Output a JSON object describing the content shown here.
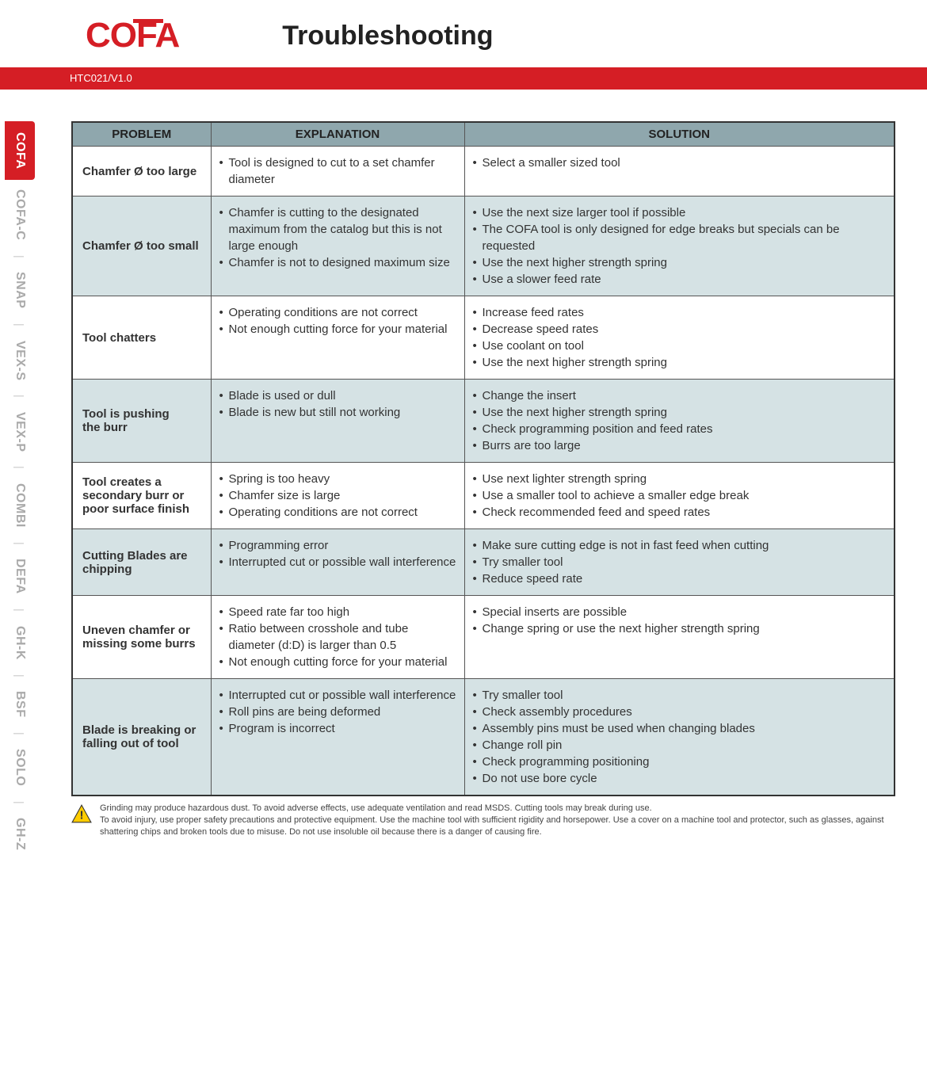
{
  "header": {
    "logo": "COFA",
    "title": "Troubleshooting",
    "doc_version": "HTC021/V1.0"
  },
  "colors": {
    "brand_red": "#d51e25",
    "table_header_bg": "#8fa7ad",
    "row_alt_bg": "#d5e2e4",
    "border": "#333333",
    "inactive_tab": "#aaaaaa"
  },
  "side_tabs": [
    {
      "label": "COFA",
      "active": true
    },
    {
      "label": "COFA-C",
      "active": false
    },
    {
      "label": "SNAP",
      "active": false
    },
    {
      "label": "VEX-S",
      "active": false
    },
    {
      "label": "VEX-P",
      "active": false
    },
    {
      "label": "COMBI",
      "active": false
    },
    {
      "label": "DEFA",
      "active": false
    },
    {
      "label": "GH-K",
      "active": false
    },
    {
      "label": "BSF",
      "active": false
    },
    {
      "label": "SOLO",
      "active": false
    },
    {
      "label": "GH-Z",
      "active": false
    }
  ],
  "table": {
    "columns": [
      "PROBLEM",
      "EXPLANATION",
      "SOLUTION"
    ],
    "rows": [
      {
        "problem": "Chamfer Ø too large",
        "explanation": [
          "Tool is designed to cut to a set chamfer diameter"
        ],
        "solution": [
          "Select a smaller sized tool"
        ],
        "alt": false
      },
      {
        "problem": "Chamfer Ø too small",
        "explanation": [
          "Chamfer is cutting to the designated maximum from the catalog but this is not large enough",
          "Chamfer is not to designed maximum size"
        ],
        "solution": [
          "Use the next size larger tool if possible",
          "The COFA tool is only designed for edge breaks but specials can be requested",
          "Use the next higher strength spring",
          "Use a slower feed rate"
        ],
        "alt": true
      },
      {
        "problem": "Tool chatters",
        "explanation": [
          "Operating conditions are not correct",
          "Not enough cutting force for your material"
        ],
        "solution": [
          "Increase feed rates",
          "Decrease speed rates",
          "Use coolant on tool",
          "Use the next higher strength spring"
        ],
        "alt": false
      },
      {
        "problem": "Tool is pushing\nthe burr",
        "explanation": [
          "Blade is used or dull",
          "Blade is new but still not working"
        ],
        "solution": [
          "Change the insert",
          "Use the next higher strength spring",
          "Check programming position and feed rates",
          "Burrs are too large"
        ],
        "alt": true
      },
      {
        "problem": "Tool creates a\nsecondary burr or\npoor surface finish",
        "explanation": [
          "Spring is too heavy",
          "Chamfer size is large",
          "Operating conditions are not correct"
        ],
        "solution": [
          "Use next lighter strength spring",
          "Use a smaller tool to achieve a smaller edge break",
          "Check recommended feed and speed rates"
        ],
        "alt": false
      },
      {
        "problem": "Cutting Blades are\nchipping",
        "explanation": [
          "Programming error",
          "Interrupted cut or possible wall interference"
        ],
        "solution": [
          "Make sure cutting edge is not in fast feed when cutting",
          "Try smaller tool",
          "Reduce speed rate"
        ],
        "alt": true
      },
      {
        "problem": "Uneven chamfer or\nmissing some burrs",
        "explanation": [
          "Speed rate far too high",
          "Ratio between crosshole and tube diameter (d:D) is larger than 0.5",
          "Not enough cutting force for your material"
        ],
        "solution": [
          "Special inserts are possible",
          "Change spring or use the next higher strength spring"
        ],
        "alt": false
      },
      {
        "problem": "Blade is breaking or\nfalling out of tool",
        "explanation": [
          "Interrupted cut or possible wall interference",
          "Roll pins are being deformed",
          "Program is incorrect"
        ],
        "solution": [
          "Try smaller tool",
          "Check assembly procedures",
          "Assembly pins must be used when changing blades",
          "Change roll pin",
          "Check programming positioning",
          "Do not use bore cycle"
        ],
        "alt": true
      }
    ]
  },
  "warning": {
    "line1": "Grinding may produce hazardous dust. To avoid adverse effects, use adequate ventilation and read MSDS. Cutting tools may break during use.",
    "line2": "To avoid injury, use proper safety precautions and protective equipment. Use the machine tool with sufficient rigidity and horsepower. Use a cover on a machine tool and protector, such as glasses, against shattering chips and broken tools due to misuse. Do not use insoluble oil because there is a danger of causing fire."
  }
}
